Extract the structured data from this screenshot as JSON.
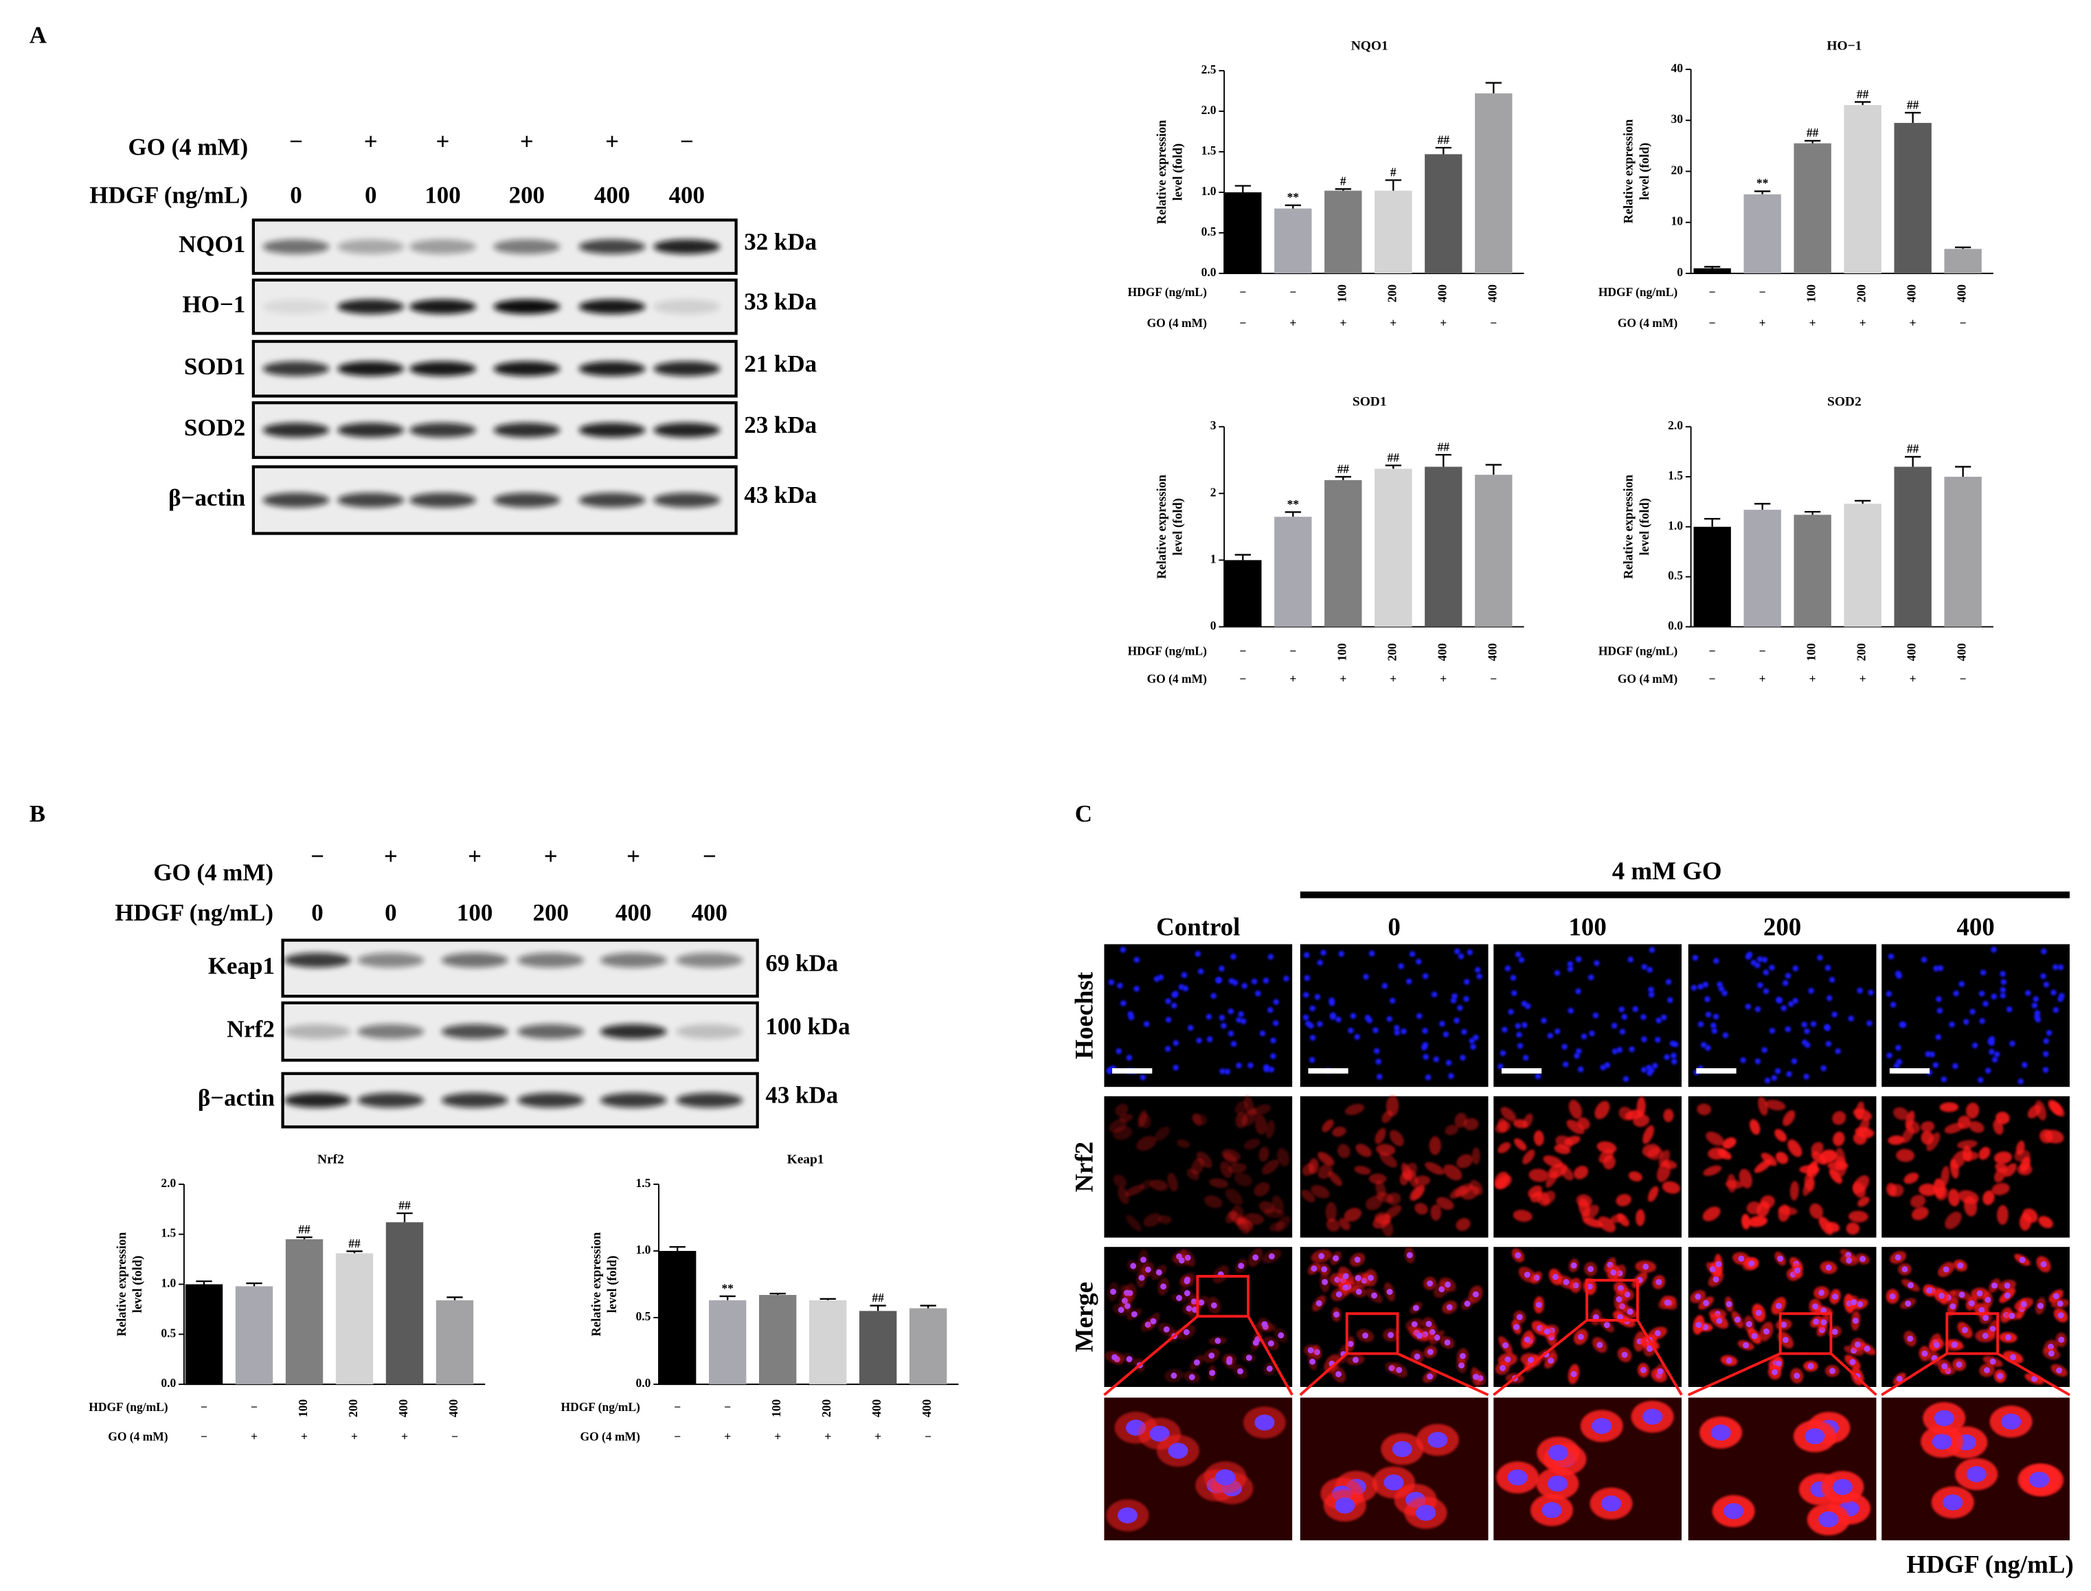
{
  "panel_labels": [
    "A",
    "B",
    "C"
  ],
  "blot_a": {
    "go_label": "GO (4 mM)",
    "go": [
      "−",
      "+",
      "+",
      "+",
      "+",
      "−"
    ],
    "hdgf_label": "HDGF (ng/mL)",
    "hdgf": [
      "0",
      "0",
      "100",
      "200",
      "400",
      "400"
    ],
    "proteins": [
      {
        "name": "NQO1",
        "size": "32 kDa"
      },
      {
        "name": "HO−1",
        "size": "33 kDa"
      },
      {
        "name": "SOD1",
        "size": "21 kDa"
      },
      {
        "name": "SOD2",
        "size": "23 kDa"
      },
      {
        "name": "β−actin",
        "size": "43 kDa"
      }
    ]
  },
  "blot_b": {
    "go_label": "GO (4 mM)",
    "go": [
      "−",
      "+",
      "+",
      "+",
      "+",
      "−"
    ],
    "hdgf_label": "HDGF (ng/mL)",
    "hdgf": [
      "0",
      "0",
      "100",
      "200",
      "400",
      "400"
    ],
    "proteins": [
      {
        "name": "Keap1",
        "size": "69 kDa"
      },
      {
        "name": "Nrf2",
        "size": "100 kDa"
      },
      {
        "name": "β−actin",
        "size": "43 kDa"
      }
    ]
  },
  "panel_c": {
    "group_label": "4 mM GO",
    "columns": [
      "Control",
      "0",
      "100",
      "200",
      "400"
    ],
    "rows": [
      "Hoechst",
      "Nrf2",
      "Merge"
    ],
    "axis_label": "HDGF (ng/mL)"
  },
  "chart_data": [
    {
      "type": "bar",
      "title": "NQO1",
      "ylabel": [
        "Relative expression",
        "level (fold)"
      ],
      "values": [
        1.0,
        0.8,
        1.02,
        1.02,
        1.47,
        2.22
      ],
      "errors": [
        0.08,
        0.04,
        0.02,
        0.13,
        0.08,
        0.13
      ],
      "annotations": [
        null,
        "**",
        "#",
        "#",
        "##",
        null
      ],
      "colors": [
        "#000000",
        "#a8a8b0",
        "#7f7f7f",
        "#d4d4d4",
        "#5b5b5b",
        "#a3a3a6"
      ],
      "ylim": [
        0,
        2.5
      ],
      "yticks": [
        {
          "value": 0,
          "label": "0.0"
        },
        0.5,
        {
          "value": 1,
          "label": "1.0"
        },
        1.5,
        {
          "value": 2,
          "label": "2.0"
        },
        2.5
      ],
      "rows": [
        {
          "label": "HDGF (ng/mL)",
          "labels": [
            "−",
            "−",
            "100",
            "200",
            "400",
            "400"
          ]
        },
        {
          "label": "GO (4 mM)",
          "labels": [
            "−",
            "+",
            "+",
            "+",
            "+",
            "−"
          ]
        }
      ]
    },
    {
      "type": "bar",
      "title": "HO−1",
      "ylabel": [
        "Relative expression",
        "level (fold)"
      ],
      "values": [
        1.0,
        15.5,
        25.5,
        33.0,
        29.5,
        4.8
      ],
      "errors": [
        0.3,
        0.6,
        0.5,
        0.6,
        2.0,
        0.3
      ],
      "annotations": [
        null,
        "**",
        "##",
        "##",
        "##",
        null
      ],
      "colors": [
        "#000000",
        "#a8a8b0",
        "#7f7f7f",
        "#d4d4d4",
        "#5b5b5b",
        "#a3a3a6"
      ],
      "ylim": [
        0,
        40
      ],
      "yticks": [
        0,
        10,
        20,
        30,
        40
      ],
      "rows": [
        {
          "label": "HDGF (ng/mL)",
          "labels": [
            "−",
            "−",
            "100",
            "200",
            "400",
            "400"
          ]
        },
        {
          "label": "GO (4 mM)",
          "labels": [
            "−",
            "+",
            "+",
            "+",
            "+",
            "−"
          ]
        }
      ]
    },
    {
      "type": "bar",
      "title": "SOD1",
      "ylabel": [
        "Relative expression",
        "level (fold)"
      ],
      "values": [
        1.0,
        1.65,
        2.2,
        2.37,
        2.4,
        2.28
      ],
      "errors": [
        0.08,
        0.07,
        0.05,
        0.05,
        0.18,
        0.15
      ],
      "annotations": [
        null,
        "**",
        "##",
        "##",
        "##",
        null
      ],
      "colors": [
        "#000000",
        "#a8a8b0",
        "#7f7f7f",
        "#d4d4d4",
        "#5b5b5b",
        "#a3a3a6"
      ],
      "ylim": [
        0,
        3
      ],
      "yticks": [
        0,
        1,
        2,
        3
      ],
      "rows": [
        {
          "label": "HDGF (ng/mL)",
          "labels": [
            "−",
            "−",
            "100",
            "200",
            "400",
            "400"
          ]
        },
        {
          "label": "GO (4 mM)",
          "labels": [
            "−",
            "+",
            "+",
            "+",
            "+",
            "−"
          ]
        }
      ]
    },
    {
      "type": "bar",
      "title": "SOD2",
      "ylabel": [
        "Relative expression",
        "level (fold)"
      ],
      "values": [
        1.0,
        1.17,
        1.12,
        1.23,
        1.6,
        1.5
      ],
      "errors": [
        0.08,
        0.06,
        0.03,
        0.03,
        0.1,
        0.1
      ],
      "annotations": [
        null,
        null,
        null,
        null,
        "##",
        null
      ],
      "colors": [
        "#000000",
        "#a8a8b0",
        "#7f7f7f",
        "#d4d4d4",
        "#5b5b5b",
        "#a3a3a6"
      ],
      "ylim": [
        0,
        2
      ],
      "yticks": [
        {
          "value": 0,
          "label": "0.0"
        },
        0.5,
        {
          "value": 1,
          "label": "1.0"
        },
        1.5,
        {
          "value": 2,
          "label": "2.0"
        }
      ],
      "rows": [
        {
          "label": "HDGF (ng/mL)",
          "labels": [
            "−",
            "−",
            "100",
            "200",
            "400",
            "400"
          ]
        },
        {
          "label": "GO (4 mM)",
          "labels": [
            "−",
            "+",
            "+",
            "+",
            "+",
            "−"
          ]
        }
      ]
    },
    {
      "type": "bar",
      "title": "Nrf2",
      "ylabel": [
        "Relative expression",
        "level (fold)"
      ],
      "values": [
        1.0,
        0.98,
        1.45,
        1.31,
        1.62,
        0.84
      ],
      "errors": [
        0.03,
        0.03,
        0.02,
        0.02,
        0.09,
        0.03
      ],
      "annotations": [
        null,
        null,
        "##",
        "##",
        "##",
        null
      ],
      "colors": [
        "#000000",
        "#a8a8b0",
        "#7f7f7f",
        "#d4d4d4",
        "#5b5b5b",
        "#a3a3a6"
      ],
      "ylim": [
        0,
        2
      ],
      "yticks": [
        {
          "value": 0,
          "label": "0.0"
        },
        0.5,
        {
          "value": 1,
          "label": "1.0"
        },
        1.5,
        {
          "value": 2,
          "label": "2.0"
        }
      ],
      "rows": [
        {
          "label": "HDGF (ng/mL)",
          "labels": [
            "−",
            "−",
            "100",
            "200",
            "400",
            "400"
          ]
        },
        {
          "label": "GO (4 mM)",
          "labels": [
            "−",
            "+",
            "+",
            "+",
            "+",
            "−"
          ]
        }
      ]
    },
    {
      "type": "bar",
      "title": "Keap1",
      "ylabel": [
        "Relative expression",
        "level (fold)"
      ],
      "values": [
        1.0,
        0.63,
        0.67,
        0.63,
        0.55,
        0.57
      ],
      "errors": [
        0.03,
        0.03,
        0.01,
        0.01,
        0.04,
        0.02
      ],
      "annotations": [
        null,
        "**",
        null,
        null,
        "##",
        null
      ],
      "colors": [
        "#000000",
        "#a8a8b0",
        "#7f7f7f",
        "#d4d4d4",
        "#5b5b5b",
        "#a3a3a6"
      ],
      "ylim": [
        0,
        1.5
      ],
      "yticks": [
        {
          "value": 0,
          "label": "0.0"
        },
        0.5,
        {
          "value": 1,
          "label": "1.0"
        },
        1.5
      ],
      "rows": [
        {
          "label": "HDGF (ng/mL)",
          "labels": [
            "−",
            "−",
            "100",
            "200",
            "400",
            "400"
          ]
        },
        {
          "label": "GO (4 mM)",
          "labels": [
            "−",
            "+",
            "+",
            "+",
            "+",
            "−"
          ]
        }
      ]
    }
  ]
}
